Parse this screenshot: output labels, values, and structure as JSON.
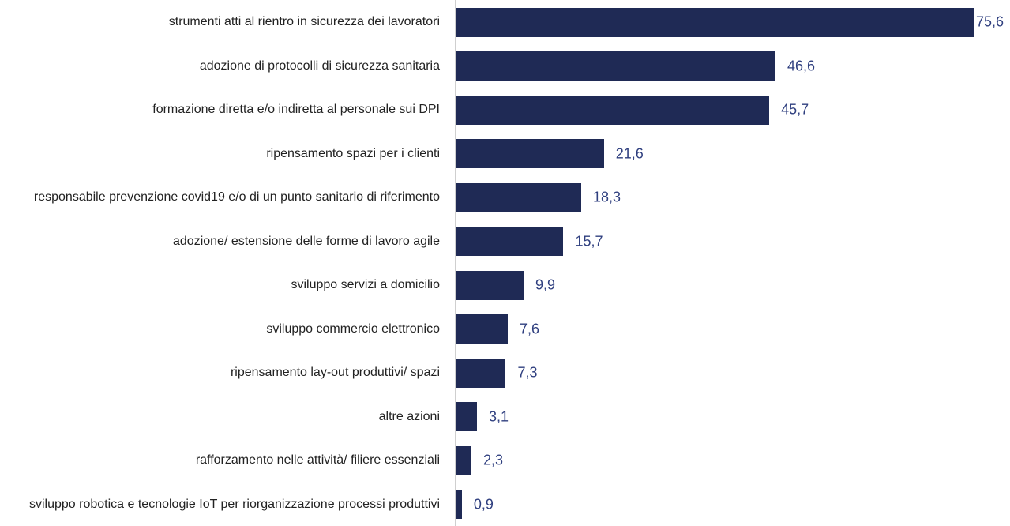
{
  "chart_data": {
    "type": "bar",
    "orientation": "horizontal",
    "categories": [
      "strumenti atti al rientro in sicurezza dei lavoratori",
      "adozione di protocolli di sicurezza sanitaria",
      "formazione diretta e/o indiretta al personale sui DPI",
      "ripensamento spazi per i clienti",
      "responsabile prevenzione covid19  e/o di un punto sanitario di riferimento",
      "adozione/ estensione delle forme di lavoro agile",
      "sviluppo servizi a domicilio",
      "sviluppo commercio elettronico",
      "ripensamento lay-out produttivi/ spazi",
      "altre azioni",
      "rafforzamento nelle attività/ filiere essenziali",
      "sviluppo robotica e tecnologie IoT per riorganizzazione processi produttivi"
    ],
    "values": [
      75.6,
      46.6,
      45.7,
      21.6,
      18.3,
      15.7,
      9.9,
      7.6,
      7.3,
      3.1,
      2.3,
      0.9
    ],
    "value_labels": [
      "75,6",
      "46,6",
      "45,7",
      "21,6",
      "18,3",
      "15,7",
      "9,9",
      "7,6",
      "7,3",
      "3,1",
      "2,3",
      "0,9"
    ],
    "color": "#1f2a55"
  }
}
